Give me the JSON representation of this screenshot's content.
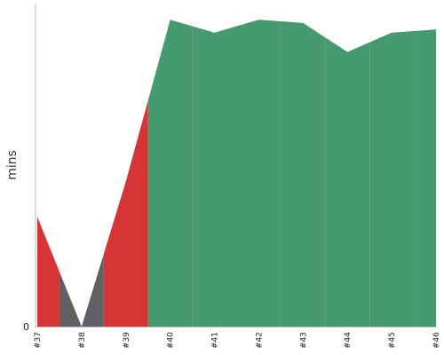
{
  "chart_data": {
    "type": "area",
    "ylabel": "mins",
    "y_tick_labels": [
      "0"
    ],
    "ylim": [
      0,
      100
    ],
    "categories": [
      "#37",
      "#38",
      "#39",
      "#40",
      "#41",
      "#42",
      "#43",
      "#44",
      "#45",
      "#46"
    ],
    "values": [
      34,
      0,
      45,
      95,
      91,
      95,
      94,
      85,
      91,
      92
    ],
    "statuses": [
      "failure",
      "aborted",
      "failure",
      "success",
      "success",
      "success",
      "success",
      "success",
      "success",
      "success"
    ],
    "colors": {
      "success": "#459b6d",
      "failure": "#d73535",
      "aborted": "#616064",
      "axis": "#bbbbbb"
    }
  }
}
